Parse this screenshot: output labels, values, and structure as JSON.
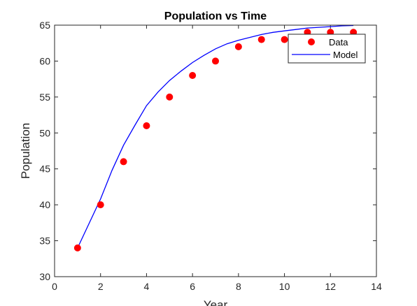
{
  "chart_data": {
    "type": "line",
    "title": "Population vs Time",
    "xlabel": "Year",
    "ylabel": "Population",
    "xlim": [
      0,
      14
    ],
    "ylim": [
      30,
      65
    ],
    "x_ticks": [
      0,
      2,
      4,
      6,
      8,
      10,
      12,
      14
    ],
    "y_ticks": [
      30,
      35,
      40,
      45,
      50,
      55,
      60,
      65
    ],
    "grid": false,
    "legend_position": "top-right",
    "series": [
      {
        "name": "Data",
        "kind": "scatter",
        "color": "#ff0000",
        "x": [
          1,
          2,
          3,
          4,
          5,
          6,
          7,
          8,
          9,
          10,
          11,
          12,
          13
        ],
        "values": [
          34,
          40,
          46,
          51,
          55,
          58,
          60,
          62,
          63,
          63,
          64,
          64,
          64
        ]
      },
      {
        "name": "Model",
        "kind": "line",
        "color": "#0000ff",
        "x": [
          1,
          1.5,
          2,
          2.5,
          3,
          3.5,
          4,
          4.5,
          5,
          5.5,
          6,
          6.5,
          7,
          7.5,
          8,
          8.5,
          9,
          9.5,
          10,
          10.5,
          11,
          11.5,
          12,
          12.5,
          13
        ],
        "values": [
          34,
          37.4,
          40.8,
          44.8,
          48.3,
          51.1,
          53.8,
          55.7,
          57.3,
          58.6,
          59.8,
          60.8,
          61.7,
          62.4,
          62.9,
          63.3,
          63.7,
          64.0,
          64.2,
          64.4,
          64.6,
          64.7,
          64.8,
          64.9,
          64.95
        ]
      }
    ]
  }
}
